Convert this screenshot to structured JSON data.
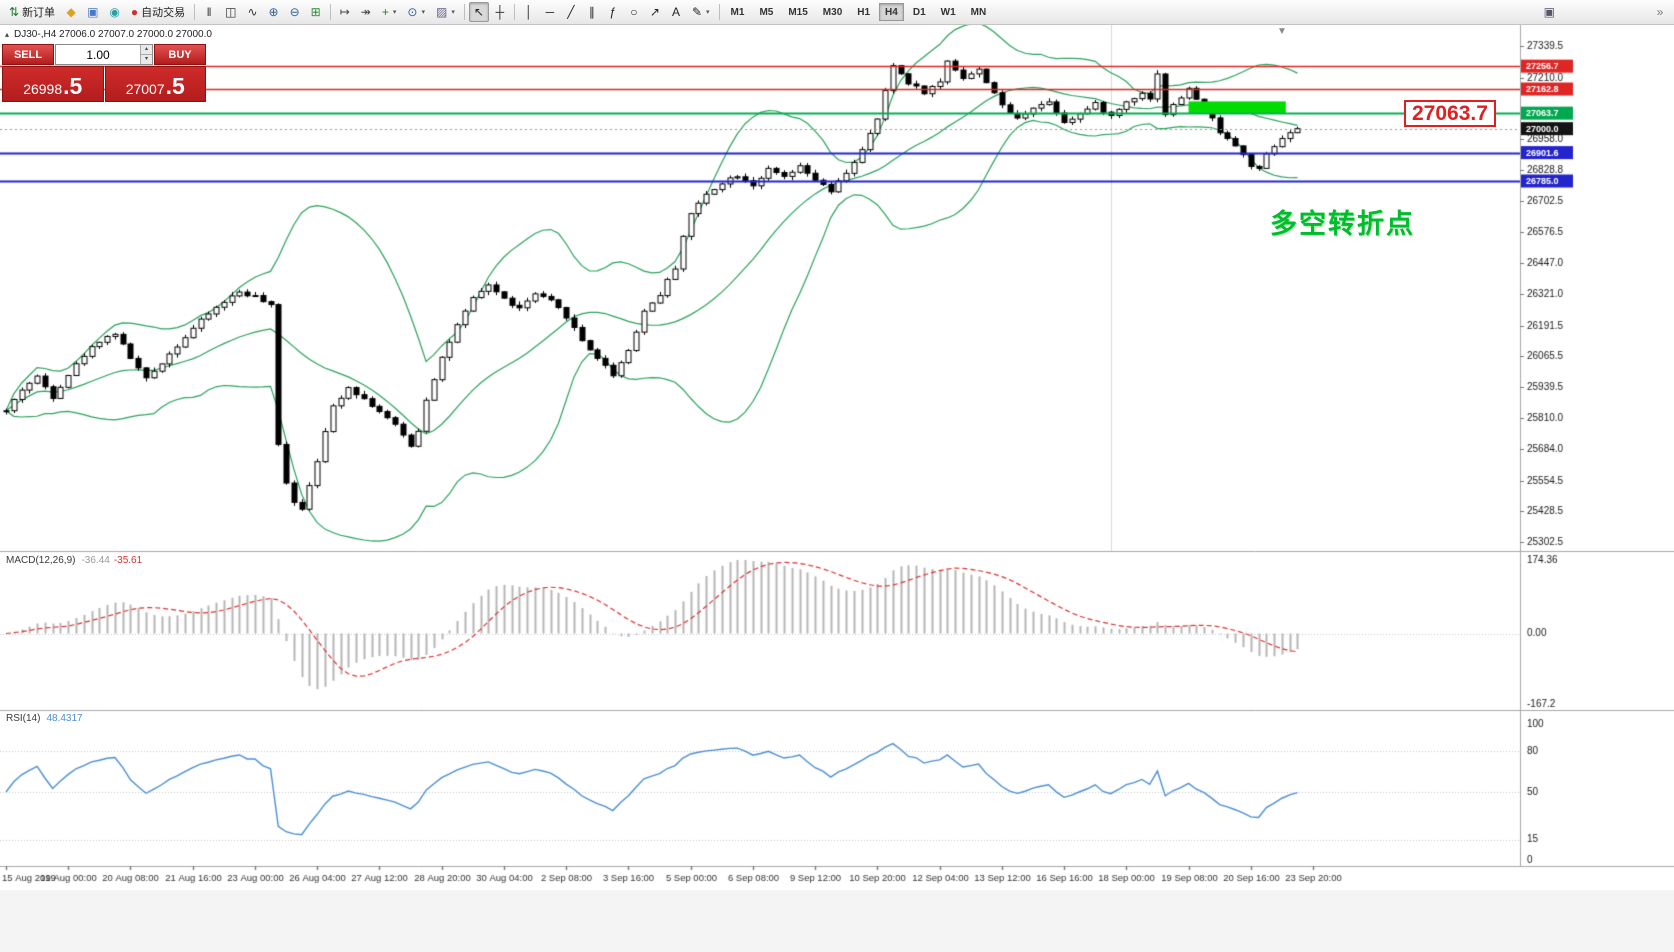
{
  "toolbar": {
    "items": [
      {
        "t": "btn",
        "name": "new-order-button",
        "glyph": "⇅",
        "color": "#1e7e2e",
        "label": "新订单"
      },
      {
        "t": "ico",
        "name": "mql5-community-button",
        "glyph": "◆",
        "color": "#e0a020"
      },
      {
        "t": "ico",
        "name": "market-button",
        "glyph": "▣",
        "color": "#4a78c8"
      },
      {
        "t": "ico",
        "name": "signals-button",
        "glyph": "◉",
        "color": "#2ba0a0"
      },
      {
        "t": "btn",
        "name": "auto-trading-button",
        "glyph": "●",
        "color": "#d03030",
        "label": "自动交易"
      },
      {
        "t": "sep"
      },
      {
        "t": "ico",
        "name": "bars-chart-button",
        "glyph": "‖",
        "color": "#333333"
      },
      {
        "t": "ico",
        "name": "candlestick-chart-button",
        "glyph": "◫",
        "color": "#333333"
      },
      {
        "t": "ico",
        "name": "line-chart-button",
        "glyph": "∿",
        "color": "#333333"
      },
      {
        "t": "ico",
        "name": "zoom-in-button",
        "glyph": "⊕",
        "color": "#31619c"
      },
      {
        "t": "ico",
        "name": "zoom-out-button",
        "glyph": "⊖",
        "color": "#31619c"
      },
      {
        "t": "ico",
        "name": "tile-windows-button",
        "glyph": "⊞",
        "color": "#2e8a2e"
      },
      {
        "t": "sep"
      },
      {
        "t": "ico",
        "name": "chart-shift-button",
        "glyph": "↦",
        "color": "#444444"
      },
      {
        "t": "ico",
        "name": "auto-scroll-button",
        "glyph": "↠",
        "color": "#444444"
      },
      {
        "t": "ico",
        "name": "indicators-button",
        "glyph": "+",
        "color": "#1e8a1e",
        "caret": true
      },
      {
        "t": "ico",
        "name": "periods-button",
        "glyph": "⊙",
        "color": "#31619c",
        "caret": true
      },
      {
        "t": "ico",
        "name": "templates-button",
        "glyph": "▨",
        "color": "#666688",
        "caret": true
      },
      {
        "t": "sep"
      },
      {
        "t": "ico",
        "name": "cursor-button",
        "glyph": "↖",
        "color": "#222222",
        "active": true
      },
      {
        "t": "ico",
        "name": "crosshair-button",
        "glyph": "┼",
        "color": "#222222"
      },
      {
        "t": "sep"
      },
      {
        "t": "ico",
        "name": "vertical-line-button",
        "glyph": "│",
        "color": "#222222"
      },
      {
        "t": "ico",
        "name": "horizontal-line-button",
        "glyph": "─",
        "color": "#222222"
      },
      {
        "t": "ico",
        "name": "trendline-button",
        "glyph": "╱",
        "color": "#222222"
      },
      {
        "t": "ico",
        "name": "equidistant-channel-button",
        "glyph": "∥",
        "color": "#222222"
      },
      {
        "t": "ico",
        "name": "fibonacci-button",
        "glyph": "ƒ",
        "color": "#222222"
      },
      {
        "t": "ico",
        "name": "shapes-button",
        "glyph": "○",
        "color": "#222222"
      },
      {
        "t": "ico",
        "name": "arrows-button",
        "glyph": "↗",
        "color": "#222222"
      },
      {
        "t": "ico",
        "name": "text-button",
        "glyph": "A",
        "color": "#222222"
      },
      {
        "t": "ico",
        "name": "text-label-button",
        "glyph": "✎",
        "color": "#222222",
        "caret": true
      },
      {
        "t": "sep"
      },
      {
        "t": "tf"
      },
      {
        "t": "flex"
      },
      {
        "t": "ico",
        "name": "open-chart-window-button",
        "glyph": "▣",
        "color": "#555566"
      },
      {
        "t": "gap",
        "w": 88
      },
      {
        "t": "ico",
        "name": "toolbar-overflow-button",
        "glyph": "»",
        "color": "#777777"
      }
    ],
    "timeframes": {
      "items": [
        "M1",
        "M5",
        "M15",
        "M30",
        "H1",
        "H4",
        "D1",
        "W1",
        "MN"
      ],
      "active": "H4"
    }
  },
  "chart": {
    "collapse_arrow": "▴",
    "symbol_info": "DJ30-,H4  27006.0 27007.0 27000.0 27000.0",
    "shift_marker": "▼",
    "trade_panel": {
      "sell_label": "SELL",
      "buy_label": "BUY",
      "volume": "1.00",
      "spin_up": "▴",
      "spin_down": "▾",
      "sell_price_main": "26998",
      "sell_price_frac": ".5",
      "buy_price_main": "27007",
      "buy_price_frac": ".5"
    },
    "annotations": {
      "big_price_label": "27063.7",
      "turning_point": "多空转折点"
    },
    "hlines": [
      {
        "price": 27256.7,
        "color": "#e02525",
        "width": 1.4
      },
      {
        "price": 27162.8,
        "color": "#e02525",
        "width": 1.4
      },
      {
        "price": 27063.7,
        "color": "#00b050",
        "width": 2
      },
      {
        "price": 26901.6,
        "color": "#2424cf",
        "width": 2
      },
      {
        "price": 26785.0,
        "color": "#2424cf",
        "width": 2
      }
    ],
    "axis_badges": [
      {
        "value": "27256.7",
        "color": "#e02525"
      },
      {
        "value": "27162.8",
        "color": "#e02525"
      },
      {
        "value": "27063.7",
        "color": "#00a84f"
      },
      {
        "value": "27000.0",
        "color": "#141414"
      },
      {
        "value": "26901.6",
        "color": "#2424cf"
      },
      {
        "value": "26785.0",
        "color": "#2424cf"
      }
    ],
    "current_price": {
      "value": "27000.0"
    },
    "rect_zone": {
      "from_index": 152,
      "to_index": 164.5,
      "price_top": 27112,
      "price_bottom": 27063.7,
      "color": "#00dc00"
    },
    "vline_index": 142
  },
  "chart_data": {
    "type": "candlestick",
    "symbol": "DJ30-",
    "timeframe": "H4",
    "price_range": {
      "min": 25302.5,
      "max": 27339.5
    },
    "price_axis_labels": [
      27339.5,
      27210.0,
      26958.0,
      26828.8,
      26702.5,
      26576.5,
      26447.0,
      26321.0,
      26191.5,
      26065.5,
      25939.5,
      25810.0,
      25684.0,
      25554.5,
      25428.5,
      25302.5
    ],
    "candle_count": 167,
    "candle_spacing": 7.78,
    "last_close": 27000.0,
    "candles_keypoints": [
      [
        0,
        25840
      ],
      [
        2,
        25930
      ],
      [
        4,
        25980
      ],
      [
        6,
        25900
      ],
      [
        8,
        25990
      ],
      [
        10,
        26070
      ],
      [
        12,
        26130
      ],
      [
        14,
        26160
      ],
      [
        16,
        26060
      ],
      [
        18,
        25970
      ],
      [
        20,
        26040
      ],
      [
        22,
        26110
      ],
      [
        24,
        26180
      ],
      [
        26,
        26240
      ],
      [
        28,
        26290
      ],
      [
        30,
        26330
      ],
      [
        32,
        26310
      ],
      [
        33,
        26290
      ],
      [
        34,
        26270
      ],
      [
        35,
        25700
      ],
      [
        36,
        25550
      ],
      [
        37,
        25470
      ],
      [
        38,
        25440
      ],
      [
        39,
        25540
      ],
      [
        40,
        25640
      ],
      [
        42,
        25860
      ],
      [
        44,
        25940
      ],
      [
        46,
        25890
      ],
      [
        48,
        25840
      ],
      [
        50,
        25780
      ],
      [
        52,
        25700
      ],
      [
        53,
        25760
      ],
      [
        54,
        25890
      ],
      [
        56,
        26060
      ],
      [
        58,
        26190
      ],
      [
        60,
        26300
      ],
      [
        62,
        26360
      ],
      [
        64,
        26300
      ],
      [
        66,
        26260
      ],
      [
        68,
        26320
      ],
      [
        70,
        26290
      ],
      [
        72,
        26230
      ],
      [
        74,
        26130
      ],
      [
        76,
        26060
      ],
      [
        78,
        25990
      ],
      [
        80,
        26090
      ],
      [
        82,
        26250
      ],
      [
        84,
        26320
      ],
      [
        86,
        26430
      ],
      [
        87,
        26560
      ],
      [
        88,
        26650
      ],
      [
        90,
        26730
      ],
      [
        92,
        26780
      ],
      [
        94,
        26810
      ],
      [
        96,
        26770
      ],
      [
        98,
        26830
      ],
      [
        100,
        26800
      ],
      [
        102,
        26840
      ],
      [
        104,
        26790
      ],
      [
        106,
        26740
      ],
      [
        108,
        26820
      ],
      [
        110,
        26910
      ],
      [
        112,
        27040
      ],
      [
        113,
        27150
      ],
      [
        114,
        27260
      ],
      [
        116,
        27190
      ],
      [
        118,
        27150
      ],
      [
        120,
        27190
      ],
      [
        121,
        27280
      ],
      [
        123,
        27210
      ],
      [
        125,
        27240
      ],
      [
        127,
        27150
      ],
      [
        128,
        27090
      ],
      [
        130,
        27040
      ],
      [
        132,
        27090
      ],
      [
        134,
        27110
      ],
      [
        136,
        27030
      ],
      [
        138,
        27060
      ],
      [
        140,
        27100
      ],
      [
        142,
        27050
      ],
      [
        144,
        27110
      ],
      [
        146,
        27150
      ],
      [
        147,
        27120
      ],
      [
        148,
        27230
      ],
      [
        149,
        27060
      ],
      [
        151,
        27130
      ],
      [
        152,
        27160
      ],
      [
        154,
        27090
      ],
      [
        156,
        26990
      ],
      [
        158,
        26930
      ],
      [
        160,
        26850
      ],
      [
        161,
        26830
      ],
      [
        162,
        26890
      ],
      [
        164,
        26960
      ],
      [
        166,
        27000
      ]
    ],
    "bollinger": {
      "period": 20,
      "deviation": 2
    },
    "macd": {
      "label": "MACD(12,26,9)",
      "value_main": "-36.44",
      "value_signal": "-35.61",
      "axis_labels": [
        "174.36",
        "0.00",
        "-167.2"
      ],
      "axis_values": [
        174.36,
        0,
        -167.2
      ]
    },
    "rsi": {
      "label": "RSI(14)",
      "value": "48.4317",
      "levels": [
        80,
        50,
        15
      ],
      "axis_labels": [
        "100",
        "80",
        "50",
        "15",
        "0"
      ],
      "axis_values": [
        100,
        80,
        50,
        15,
        0
      ]
    },
    "label_every": 8,
    "time_labels": [
      "15 Aug 2019",
      "19 Aug 00:00",
      "20 Aug 08:00",
      "21 Aug 16:00",
      "23 Aug 00:00",
      "26 Aug 04:00",
      "27 Aug 12:00",
      "28 Aug 20:00",
      "30 Aug 04:00",
      "2 Sep 08:00",
      "3 Sep 16:00",
      "5 Sep 00:00",
      "6 Sep 08:00",
      "9 Sep 12:00",
      "10 Sep 20:00",
      "12 Sep 04:00",
      "13 Sep 12:00",
      "16 Sep 16:00",
      "18 Sep 00:00",
      "19 Sep 08:00",
      "20 Sep 16:00",
      "23 Sep 20:00"
    ]
  },
  "colors": {
    "bull": "#ffffff",
    "bear": "#000000",
    "candle": "#000000",
    "bollinger": "#2aa35c",
    "macd_hist": "#b6b6b6",
    "macd_signal": "#e23030",
    "rsi_line": "#4a8fd4",
    "axis_text": "#1a1a1a",
    "pane_border": "#a8a8a8",
    "dotted": "#c8c8c8",
    "time_text": "#333333",
    "chart_bg": "#ffffff",
    "window_bg": "#f4f4f4",
    "current_line": "#999999"
  }
}
